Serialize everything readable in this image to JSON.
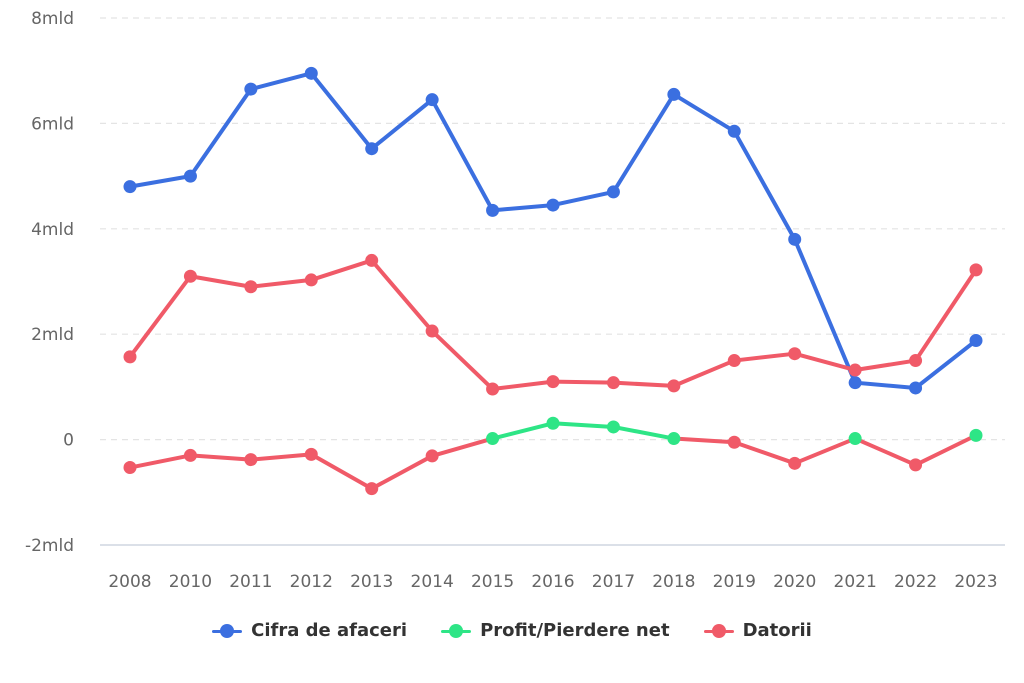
{
  "chart_data": {
    "type": "line",
    "categories": [
      "2008",
      "2010",
      "2011",
      "2012",
      "2013",
      "2014",
      "2015",
      "2016",
      "2017",
      "2018",
      "2019",
      "2020",
      "2021",
      "2022",
      "2023"
    ],
    "y_ticks": [
      "-2mld",
      "0",
      "2mld",
      "4mld",
      "6mld",
      "8mld"
    ],
    "y_tick_values": [
      -2,
      0,
      2,
      4,
      6,
      8
    ],
    "ylim": [
      -2,
      8
    ],
    "grid": true,
    "legend_position": "bottom-center",
    "series": [
      {
        "name": "Cifra de afaceri",
        "color": "#3b6fe0",
        "values": [
          4.8,
          5.0,
          6.65,
          6.95,
          5.52,
          6.45,
          4.35,
          4.45,
          4.7,
          6.55,
          5.85,
          3.8,
          1.08,
          0.98,
          1.88
        ]
      },
      {
        "name": "Profit/Pierdere net",
        "color": "#2ee586",
        "negative_color": "#f05a68",
        "values": [
          -0.53,
          -0.3,
          -0.38,
          -0.28,
          -0.93,
          -0.31,
          0.02,
          0.31,
          0.24,
          0.02,
          -0.05,
          -0.45,
          0.02,
          -0.48,
          0.08
        ]
      },
      {
        "name": "Datorii",
        "color": "#f05a68",
        "values": [
          1.57,
          3.1,
          2.9,
          3.03,
          3.4,
          2.06,
          0.96,
          1.1,
          1.08,
          1.02,
          1.5,
          1.63,
          1.32,
          1.5,
          3.22
        ]
      }
    ]
  }
}
